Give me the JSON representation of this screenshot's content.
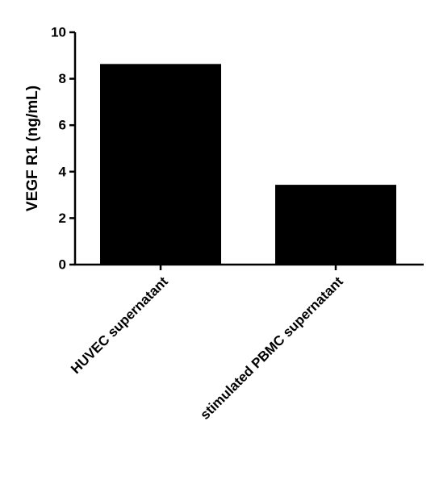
{
  "chart_data": {
    "type": "bar",
    "y_label": "VEGF R1 (ng/mL)",
    "categories": [
      "HUVEC supernatant",
      "stimulated PBMC supernatant"
    ],
    "values": [
      8.6,
      3.4
    ],
    "color": "#000000",
    "ylim": [
      0,
      10
    ],
    "yticks": [
      0,
      2,
      4,
      6,
      8,
      10
    ]
  }
}
